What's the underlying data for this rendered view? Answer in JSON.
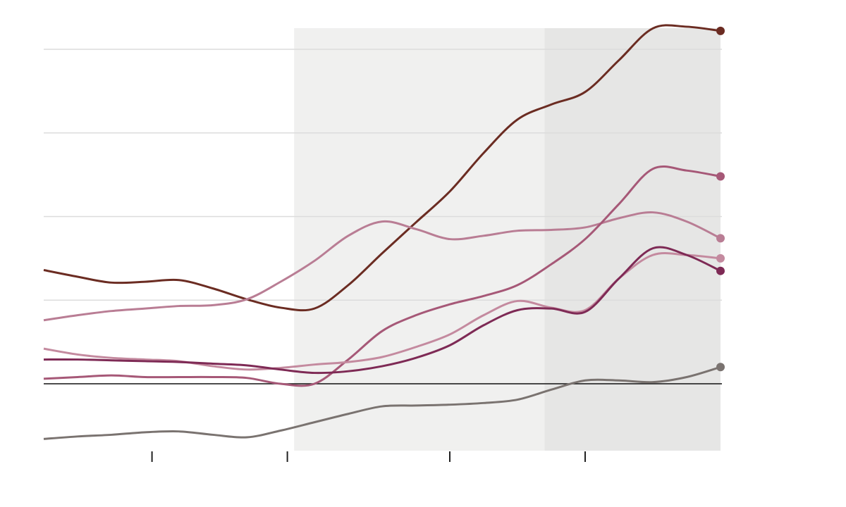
{
  "chart_data": {
    "type": "line",
    "x": [
      0,
      0.5,
      1,
      1.5,
      2,
      2.5,
      3,
      3.5,
      4,
      4.5,
      5,
      5.5,
      6,
      6.5,
      7,
      7.5,
      8,
      8.5,
      9,
      9.5,
      10
    ],
    "xlim": [
      0,
      10
    ],
    "xticks": [
      1.6,
      3.6,
      6,
      8
    ],
    "ylim": [
      -0.8,
      4.3
    ],
    "yticks": [
      0,
      1,
      2,
      3,
      4
    ],
    "grid": true,
    "shaded_regions": [
      {
        "from": 3.7,
        "to": 7.4,
        "color": "#f0f0ef"
      },
      {
        "from": 7.4,
        "to": 10,
        "color": "#e6e6e5"
      }
    ],
    "series": [
      {
        "color": "#6b2c22",
        "values": [
          1.36,
          1.28,
          1.21,
          1.22,
          1.24,
          1.14,
          1.01,
          0.91,
          0.9,
          1.18,
          1.56,
          1.93,
          2.3,
          2.76,
          3.16,
          3.34,
          3.49,
          3.87,
          4.25,
          4.27,
          4.22
        ]
      },
      {
        "color": "#b97d94",
        "values": [
          0.76,
          0.82,
          0.87,
          0.9,
          0.93,
          0.94,
          1.01,
          1.22,
          1.47,
          1.77,
          1.94,
          1.85,
          1.73,
          1.77,
          1.83,
          1.84,
          1.87,
          1.98,
          2.05,
          1.94,
          1.74
        ]
      },
      {
        "color": "#a65877",
        "values": [
          0.06,
          0.08,
          0.1,
          0.08,
          0.08,
          0.08,
          0.07,
          0,
          0,
          0.29,
          0.63,
          0.82,
          0.95,
          1.05,
          1.18,
          1.43,
          1.73,
          2.15,
          2.57,
          2.55,
          2.48
        ]
      },
      {
        "color": "#c48a9f",
        "values": [
          0.42,
          0.35,
          0.31,
          0.29,
          0.27,
          0.21,
          0.17,
          0.19,
          0.23,
          0.26,
          0.32,
          0.44,
          0.59,
          0.82,
          0.99,
          0.91,
          0.88,
          1.26,
          1.54,
          1.54,
          1.5
        ]
      },
      {
        "color": "#7e2a55",
        "values": [
          0.29,
          0.29,
          0.28,
          0.27,
          0.26,
          0.24,
          0.22,
          0.17,
          0.13,
          0.15,
          0.21,
          0.31,
          0.46,
          0.7,
          0.88,
          0.9,
          0.86,
          1.26,
          1.62,
          1.54,
          1.35
        ]
      },
      {
        "color": "#7a7370",
        "values": [
          -0.66,
          -0.63,
          -0.61,
          -0.58,
          -0.57,
          -0.61,
          -0.64,
          -0.56,
          -0.46,
          -0.36,
          -0.27,
          -0.26,
          -0.25,
          -0.23,
          -0.19,
          -0.07,
          0.04,
          0.04,
          0.02,
          0.08,
          0.2
        ]
      }
    ]
  }
}
